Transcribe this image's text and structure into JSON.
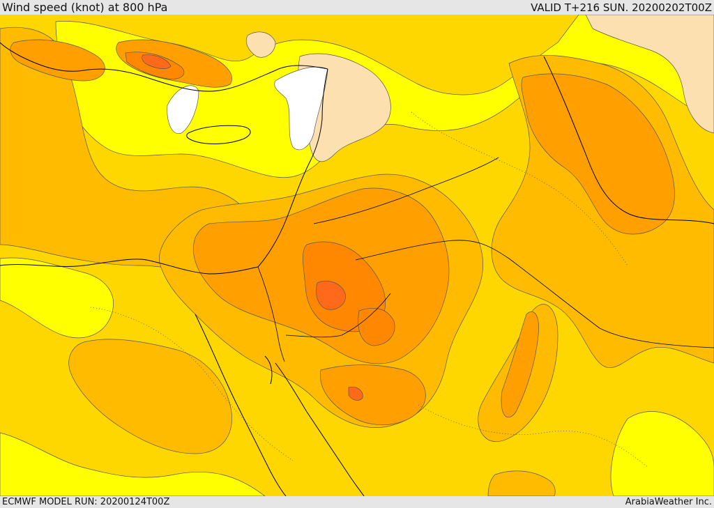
{
  "header": {
    "title": "Wind speed (knot) at 800 hPa",
    "valid": "VALID T+216 SUN. 20200202T00Z"
  },
  "footer": {
    "model_run": "ECMWF MODEL RUN: 20200124T00Z",
    "credit": "ArabiaWeather Inc."
  },
  "map": {
    "field": "wind speed",
    "level": "800 hPa",
    "units": "knot",
    "colors": {
      "weakest": "#ffffff",
      "very_light": "#fde0b0",
      "light": "#ffff00",
      "moderate": "#ffd700",
      "fresh": "#ffbb00",
      "strong": "#ffa000",
      "stronger": "#ff8800",
      "strongest": "#ff6a1a",
      "contour_line": "#555555",
      "coastline": "#000000"
    }
  }
}
